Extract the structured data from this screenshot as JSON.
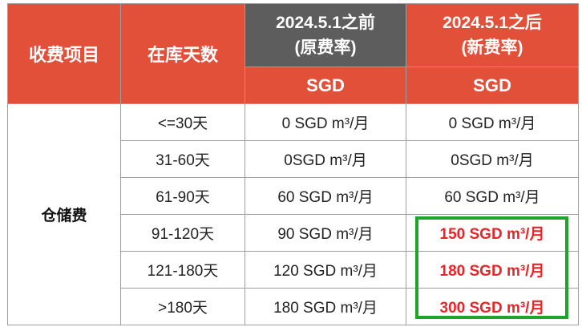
{
  "header": {
    "item_label": "收费项目",
    "days_label": "在库天数",
    "old_rate_line1": "2024.5.1之前",
    "old_rate_line2": "(原费率)",
    "new_rate_line1": "2024.5.1之后",
    "new_rate_line2": "(新费率)",
    "old_currency": "SGD",
    "new_currency": "SGD"
  },
  "category": "仓储费",
  "rows": [
    {
      "days": "<=30天",
      "old": "0 SGD m³/月",
      "new": "0 SGD m³/月",
      "highlight": false
    },
    {
      "days": "31-60天",
      "old": "0SGD m³/月",
      "new": "0SGD m³/月",
      "highlight": false
    },
    {
      "days": "61-90天",
      "old": "60 SGD m³/月",
      "new": "60 SGD m³/月",
      "highlight": false
    },
    {
      "days": "91-120天",
      "old": "90 SGD m³/月",
      "new": "150 SGD m³/月",
      "highlight": true
    },
    {
      "days": "121-180天",
      "old": "120 SGD m³/月",
      "new": "180 SGD m³/月",
      "highlight": true
    },
    {
      "days": ">180天",
      "old": "180 SGD m³/月",
      "new": "300 SGD m³/月",
      "highlight": true
    }
  ],
  "colors": {
    "header_orange": "#e3503a",
    "header_gray": "#5d5d5d",
    "highlight_red": "#e8262a",
    "highlight_box_green": "#1fa62a"
  }
}
